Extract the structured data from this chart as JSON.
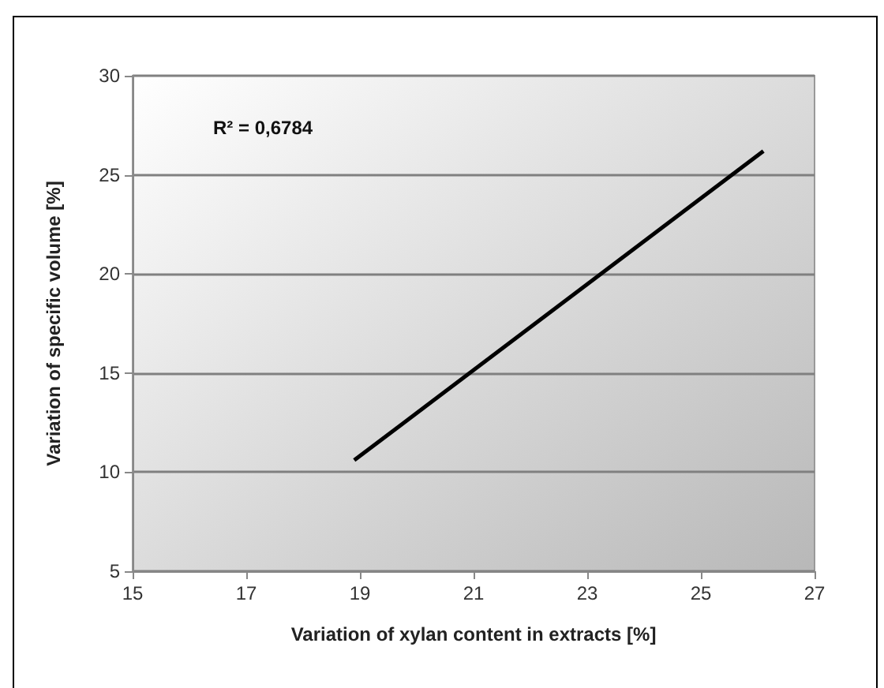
{
  "chart_data": {
    "type": "line",
    "xlabel": "Variation of xylan content in extracts [%]",
    "ylabel": "Variation of specific volume [%]",
    "annotations": [
      "R² = 0,6784"
    ],
    "x": [
      18.9,
      26.1
    ],
    "series": [
      {
        "color": "#000000",
        "values": [
          10.6,
          26.2
        ]
      }
    ],
    "xlim": [
      15,
      27
    ],
    "xticks": [
      15,
      17,
      19,
      21,
      23,
      25,
      27
    ],
    "ylim": [
      5,
      30
    ],
    "yticks": [
      5,
      10,
      15,
      20,
      25,
      30
    ],
    "grid": "y",
    "marker": "none",
    "line_style": "solid"
  }
}
